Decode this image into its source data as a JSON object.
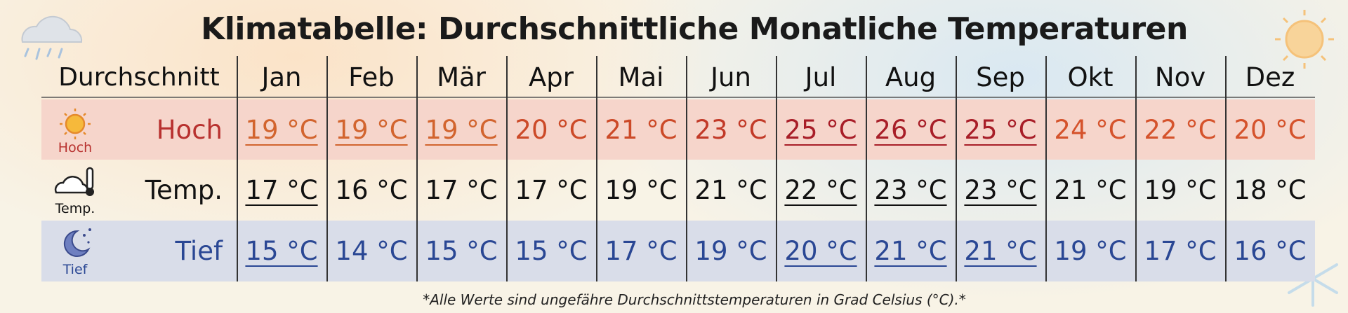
{
  "title": "Klimatabelle: Durchschnittliche Monatliche Temperaturen",
  "table": {
    "header": [
      "Durchschnitt",
      "Jan",
      "Feb",
      "Mär",
      "Apr",
      "Mai",
      "Jun",
      "Jul",
      "Aug",
      "Sep",
      "Okt",
      "Nov",
      "Dez"
    ],
    "rows": [
      {
        "icon_label": "Hoch",
        "label": "Hoch",
        "cells": [
          "19 °C",
          "19 °C",
          "19 °C",
          "20 °C",
          "21 °C",
          "23 °C",
          "25 °C",
          "26 °C",
          "25 °C",
          "24 °C",
          "22 °C",
          "20 °C"
        ]
      },
      {
        "icon_label": "Temp.",
        "label": "Temp.",
        "cells": [
          "17 °C",
          "16 °C",
          "17 °C",
          "17 °C",
          "19 °C",
          "21 °C",
          "22 °C",
          "23 °C",
          "23 °C",
          "21 °C",
          "19 °C",
          "18 °C"
        ]
      },
      {
        "icon_label": "Tief",
        "label": "Tief",
        "cells": [
          "15 °C",
          "14 °C",
          "15 °C",
          "15 °C",
          "17 °C",
          "19 °C",
          "20 °C",
          "21 °C",
          "21 °C",
          "19 °C",
          "17 °C",
          "16 °C"
        ]
      }
    ]
  },
  "footnote": "*Alle Werte sind ungefähre Durchschnittstemperaturen in Grad Celsius (°C).*"
}
